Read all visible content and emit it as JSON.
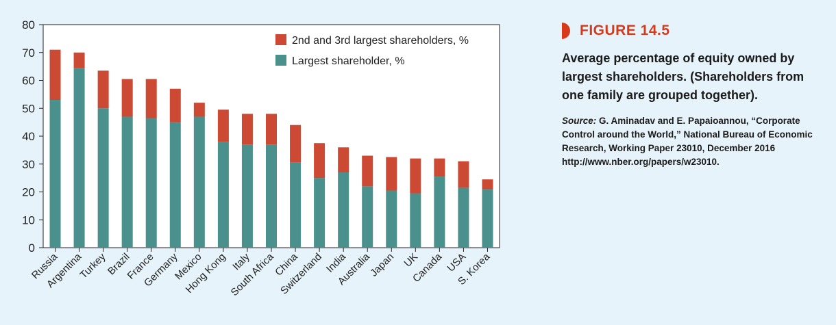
{
  "figure": {
    "label": "FIGURE 14.5",
    "title": "Average percentage of equity owned by largest shareholders. (Shareholders from one family are grouped together).",
    "source_label": "Source:",
    "source_text": "G. Aminadav and E. Papaioannou, “Corporate Control around the World,” National Bureau of Economic Research, Working Paper 23010, December 2016 http://www.nber.org/papers/w23010."
  },
  "chart_data": {
    "type": "bar",
    "stacked": true,
    "categories": [
      "Russia",
      "Argentina",
      "Turkey",
      "Brazil",
      "France",
      "Germany",
      "Mexico",
      "Hong Kong",
      "Italy",
      "South Africa",
      "China",
      "Switzerland",
      "India",
      "Australia",
      "Japan",
      "UK",
      "Canada",
      "USA",
      "S. Korea"
    ],
    "series": [
      {
        "name": "Largest shareholder, %",
        "color": "#4a908c",
        "values": [
          53,
          64.5,
          50,
          47,
          46.5,
          45,
          47,
          38,
          37,
          37,
          30.5,
          25,
          27,
          22,
          20.5,
          19.5,
          25.5,
          21.5,
          21
        ]
      },
      {
        "name": "2nd and 3rd largest shareholders, %",
        "color": "#cc4a33",
        "values": [
          18,
          5.5,
          13.5,
          13.5,
          14,
          12,
          5,
          11.5,
          11,
          11,
          13.5,
          12.5,
          9,
          11,
          12,
          12.5,
          6.5,
          9.5,
          3.5
        ]
      }
    ],
    "ylim": [
      0,
      80
    ],
    "yticks": [
      0,
      10,
      20,
      30,
      40,
      50,
      60,
      70,
      80
    ],
    "xlabel": "",
    "ylabel": "",
    "legend_position": "top-right",
    "grid": false
  }
}
